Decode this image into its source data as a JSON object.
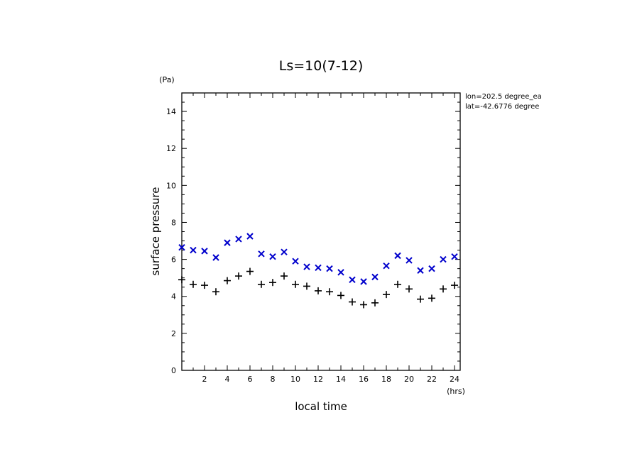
{
  "chart_data": {
    "type": "scatter",
    "title": "Ls=10(7-12)",
    "xlabel": "local time",
    "ylabel": "surface pressure",
    "x_unit": "(hrs)",
    "y_unit": "(Pa)",
    "annotations": [
      "lon=202.5 degree_ea",
      "lat=-42.6776 degree"
    ],
    "xlim": [
      0,
      24.5
    ],
    "ylim": [
      0,
      15
    ],
    "x_ticks": [
      2,
      4,
      6,
      8,
      10,
      12,
      14,
      16,
      18,
      20,
      22,
      24
    ],
    "y_ticks": [
      0,
      2,
      4,
      6,
      8,
      10,
      12,
      14
    ],
    "grid": false,
    "series": [
      {
        "marker": "x",
        "color": "#0000cc",
        "x": [
          0.0,
          1.0,
          2.0,
          3.0,
          4.0,
          5.0,
          6.0,
          7.0,
          8.0,
          9.0,
          10.0,
          11.0,
          12.0,
          13.0,
          14.0,
          15.0,
          16.0,
          17.0,
          18.0,
          19.0,
          20.0,
          21.0,
          22.0,
          23.0,
          24.0
        ],
        "y": [
          6.65,
          6.5,
          6.45,
          6.1,
          6.9,
          7.1,
          7.25,
          6.3,
          6.15,
          6.4,
          5.9,
          5.6,
          5.55,
          5.5,
          5.3,
          4.9,
          4.8,
          5.05,
          5.65,
          6.2,
          5.95,
          5.4,
          5.5,
          6.0,
          6.15
        ]
      },
      {
        "marker": "+",
        "color": "#000000",
        "x": [
          0.0,
          1.0,
          2.0,
          3.0,
          4.0,
          5.0,
          6.0,
          7.0,
          8.0,
          9.0,
          10.0,
          11.0,
          12.0,
          13.0,
          14.0,
          15.0,
          16.0,
          17.0,
          18.0,
          19.0,
          20.0,
          21.0,
          22.0,
          23.0,
          24.0
        ],
        "y": [
          4.9,
          4.65,
          4.6,
          4.25,
          4.85,
          5.1,
          5.35,
          4.65,
          4.75,
          5.1,
          4.65,
          4.55,
          4.3,
          4.25,
          4.05,
          3.7,
          3.55,
          3.65,
          4.1,
          4.65,
          4.4,
          3.85,
          3.9,
          4.4,
          4.6
        ]
      }
    ]
  }
}
